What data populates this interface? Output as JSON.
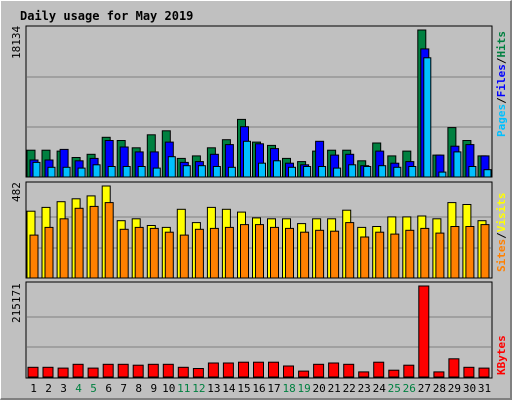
{
  "colors": {
    "background": "#c0c0c0",
    "title": "#0000ff",
    "pages": "#00c0ff",
    "files": "#0000ff",
    "hits": "#008040",
    "sites": "#ff8000",
    "visits": "#ffff00",
    "kbytes": "#ff0000",
    "weekend_label": "#008040",
    "weekday_label": "#000000"
  },
  "chart_data": [
    {
      "type": "bar",
      "title": "Daily usage for May 2019",
      "categories": [
        "1",
        "2",
        "3",
        "4",
        "5",
        "6",
        "7",
        "8",
        "9",
        "10",
        "11",
        "12",
        "13",
        "14",
        "15",
        "16",
        "17",
        "18",
        "19",
        "20",
        "21",
        "22",
        "23",
        "24",
        "25",
        "26",
        "27",
        "28",
        "29",
        "30",
        "31"
      ],
      "weekend_days": [
        "4",
        "5",
        "11",
        "12",
        "18",
        "19",
        "25",
        "26"
      ],
      "ymax_label": "18134",
      "ylim": [
        0,
        18134
      ],
      "grid": true,
      "series": [
        {
          "name": "Hits",
          "values": [
            3300,
            3300,
            3200,
            2400,
            2800,
            4900,
            4500,
            3600,
            5200,
            5700,
            2300,
            2600,
            3600,
            4600,
            7100,
            4300,
            3900,
            2300,
            1900,
            3200,
            3300,
            3300,
            2000,
            4200,
            2600,
            3200,
            18134,
            2700,
            6100,
            4500,
            2600
          ]
        },
        {
          "name": "Files",
          "values": [
            2100,
            2100,
            3400,
            2000,
            2300,
            4500,
            3700,
            3100,
            3100,
            4300,
            1800,
            1900,
            2800,
            4000,
            6200,
            4100,
            3500,
            1700,
            1500,
            4400,
            2700,
            2800,
            1400,
            3200,
            1700,
            1900,
            15800,
            2700,
            3800,
            4000,
            2600
          ]
        },
        {
          "name": "Pages",
          "values": [
            1800,
            1200,
            1200,
            1100,
            1500,
            1300,
            1300,
            1300,
            1100,
            2500,
            1400,
            1400,
            1300,
            1200,
            4400,
            1700,
            2000,
            1200,
            1300,
            1300,
            1100,
            1500,
            1300,
            1400,
            1200,
            1300,
            14700,
            600,
            3100,
            1300,
            900
          ]
        }
      ]
    },
    {
      "type": "bar",
      "categories": [
        "1",
        "2",
        "3",
        "4",
        "5",
        "6",
        "7",
        "8",
        "9",
        "10",
        "11",
        "12",
        "13",
        "14",
        "15",
        "16",
        "17",
        "18",
        "19",
        "20",
        "21",
        "22",
        "23",
        "24",
        "25",
        "26",
        "27",
        "28",
        "29",
        "30",
        "31"
      ],
      "ymax_label": "482",
      "ylim": [
        0,
        482
      ],
      "grid": true,
      "series": [
        {
          "name": "Visits",
          "values": [
            350,
            370,
            400,
            415,
            430,
            482,
            300,
            310,
            275,
            265,
            360,
            290,
            370,
            360,
            345,
            315,
            310,
            310,
            285,
            310,
            310,
            355,
            265,
            270,
            320,
            320,
            325,
            310,
            395,
            385,
            300
          ]
        },
        {
          "name": "Sites",
          "values": [
            225,
            265,
            310,
            365,
            375,
            395,
            255,
            265,
            260,
            240,
            225,
            255,
            260,
            265,
            280,
            280,
            265,
            260,
            240,
            250,
            245,
            290,
            215,
            240,
            230,
            250,
            260,
            235,
            270,
            270,
            280
          ]
        }
      ]
    },
    {
      "type": "bar",
      "categories": [
        "1",
        "2",
        "3",
        "4",
        "5",
        "6",
        "7",
        "8",
        "9",
        "10",
        "11",
        "12",
        "13",
        "14",
        "15",
        "16",
        "17",
        "18",
        "19",
        "20",
        "21",
        "22",
        "23",
        "24",
        "25",
        "26",
        "27",
        "28",
        "29",
        "30",
        "31"
      ],
      "ymax_label": "215171",
      "ylim": [
        0,
        215171
      ],
      "grid": true,
      "series": [
        {
          "name": "KBytes",
          "values": [
            23000,
            23000,
            21000,
            30000,
            21000,
            30000,
            30000,
            28000,
            30000,
            30000,
            23000,
            20000,
            33000,
            33000,
            35000,
            35000,
            35000,
            26000,
            14000,
            30000,
            33000,
            30000,
            12000,
            35000,
            16000,
            28000,
            215171,
            12000,
            43000,
            23000,
            21000
          ]
        }
      ]
    }
  ]
}
